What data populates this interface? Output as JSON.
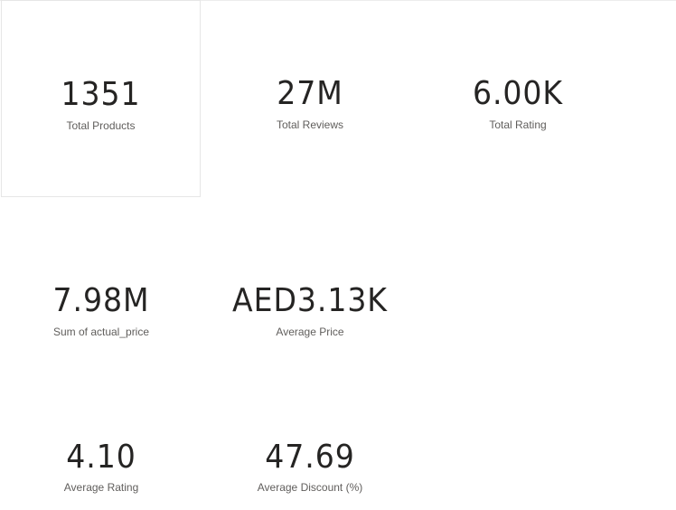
{
  "kpis": {
    "total_products": {
      "value": "1351",
      "label": "Total Products"
    },
    "total_reviews": {
      "value": "27M",
      "label": "Total Reviews"
    },
    "total_rating": {
      "value": "6.00K",
      "label": "Total Rating"
    },
    "sum_actual_price": {
      "value": "7.98M",
      "label": "Sum of actual_price"
    },
    "average_price": {
      "value": "AED3.13K",
      "label": "Average Price"
    },
    "average_rating": {
      "value": "4.10",
      "label": "Average Rating"
    },
    "average_discount": {
      "value": "47.69",
      "label": "Average Discount (%)"
    }
  },
  "colors": {
    "value_text": "#252423",
    "label_text": "#605e5c",
    "selected_border": "#e6e6e6",
    "background": "#ffffff"
  }
}
